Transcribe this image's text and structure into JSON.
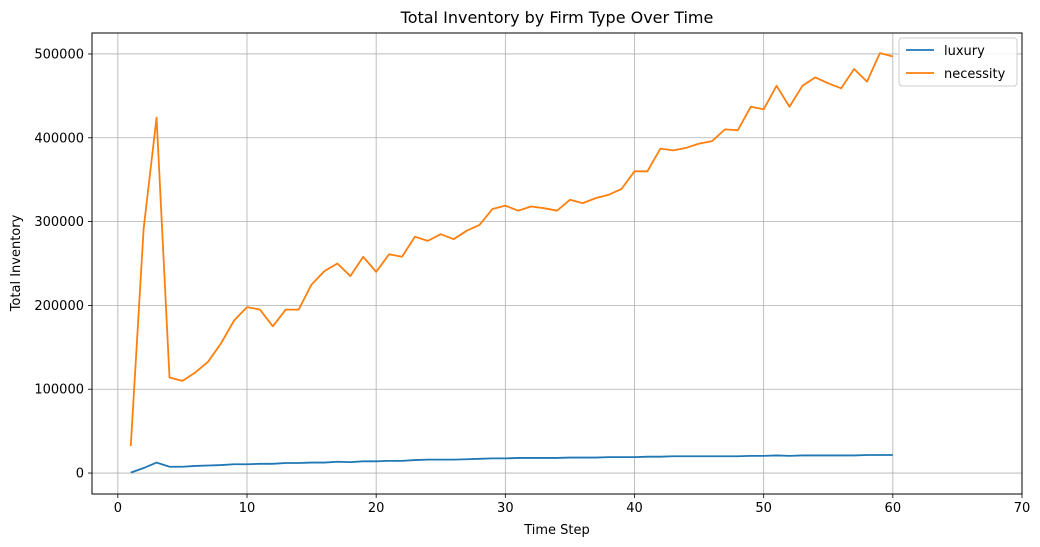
{
  "chart_data": {
    "type": "line",
    "title": "Total Inventory by Firm Type Over Time",
    "xlabel": "Time Step",
    "ylabel": "Total Inventory",
    "xlim": [
      -2,
      70
    ],
    "ylim": [
      -25000,
      525000
    ],
    "xticks": [
      0,
      10,
      20,
      30,
      40,
      50,
      60,
      70
    ],
    "yticks": [
      0,
      100000,
      200000,
      300000,
      400000,
      500000
    ],
    "grid": true,
    "legend_position": "top-right",
    "x": [
      1,
      2,
      3,
      4,
      5,
      6,
      7,
      8,
      9,
      10,
      11,
      12,
      13,
      14,
      15,
      16,
      17,
      18,
      19,
      20,
      21,
      22,
      23,
      24,
      25,
      26,
      27,
      28,
      29,
      30,
      31,
      32,
      33,
      34,
      35,
      36,
      37,
      38,
      39,
      40,
      41,
      42,
      43,
      44,
      45,
      46,
      47,
      48,
      49,
      50,
      51,
      52,
      53,
      54,
      55,
      56,
      57,
      58,
      59,
      60
    ],
    "series": [
      {
        "name": "luxury",
        "color": "#1f77b4",
        "values": [
          500,
          6000,
          12500,
          7500,
          7500,
          8500,
          9000,
          9500,
          10500,
          10500,
          11000,
          11000,
          12000,
          12000,
          12500,
          12500,
          13500,
          13000,
          14000,
          14000,
          14500,
          14500,
          15500,
          16000,
          16000,
          16000,
          16500,
          17000,
          17500,
          17500,
          18000,
          18000,
          18000,
          18000,
          18500,
          18500,
          18500,
          19000,
          19000,
          19000,
          19500,
          19500,
          20000,
          20000,
          20000,
          20000,
          20000,
          20000,
          20500,
          20500,
          21000,
          20500,
          21000,
          21000,
          21000,
          21000,
          21000,
          21500,
          21500,
          21500
        ]
      },
      {
        "name": "necessity",
        "color": "#ff7f0e",
        "values": [
          32000,
          292000,
          424000,
          114000,
          110000,
          120000,
          133000,
          155000,
          182000,
          198000,
          195000,
          175000,
          195000,
          195000,
          225000,
          241000,
          250000,
          235000,
          258000,
          240000,
          261000,
          258000,
          282000,
          277000,
          285000,
          279000,
          289000,
          296000,
          315000,
          319000,
          313000,
          318000,
          316000,
          313000,
          326000,
          322000,
          328000,
          332000,
          339000,
          360000,
          360000,
          387000,
          385000,
          388000,
          393000,
          396000,
          410000,
          409000,
          437000,
          434000,
          462000,
          437000,
          462000,
          472000,
          465000,
          459000,
          482000,
          467000,
          501000,
          497000
        ]
      }
    ]
  }
}
